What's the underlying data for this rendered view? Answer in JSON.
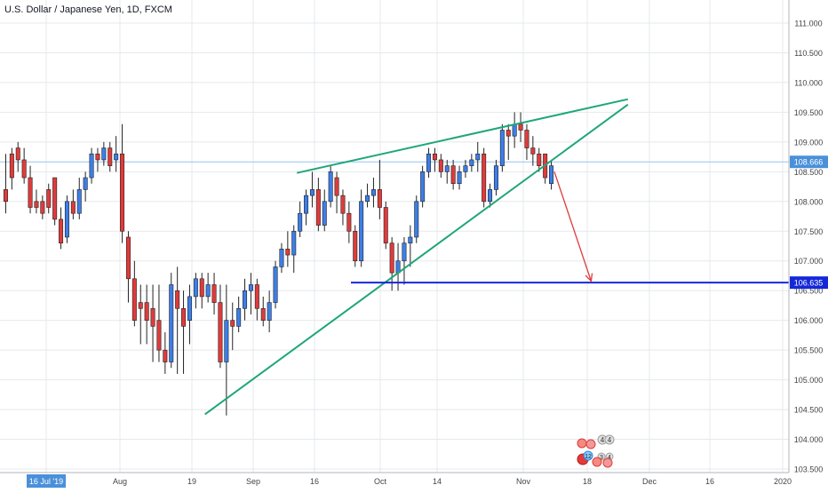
{
  "chart_data": {
    "type": "candlestick",
    "title": "U.S. Dollar / Japanese Yen, 1D, FXCM",
    "price_axis": {
      "ylim": [
        103.4,
        111.4
      ],
      "ticks": [
        "103.500",
        "104.000",
        "104.500",
        "105.000",
        "105.500",
        "106.000",
        "106.500",
        "107.000",
        "107.500",
        "108.000",
        "108.500",
        "109.000",
        "109.500",
        "110.000",
        "110.500",
        "111.000"
      ]
    },
    "time_axis": {
      "labels": [
        "16 Jul '19",
        "Aug",
        "19",
        "Sep",
        "16",
        "Oct",
        "14",
        "Nov",
        "18",
        "Dec",
        "16",
        "2020"
      ],
      "highlighted_label": "16 Jul '19"
    },
    "price_labels": [
      {
        "value": 108.666,
        "text": "108.666",
        "color": "#4a90d9"
      },
      {
        "value": 106.635,
        "text": "106.635",
        "color": "#1528d8"
      }
    ],
    "colors": {
      "up": "#3d7ee8",
      "down": "#e03b3b",
      "trendline": "#1fa67a",
      "support": "#1528d8",
      "arrow": "#e03b3b",
      "grid": "#e6e8ec"
    },
    "candles": [
      [
        108.2,
        108.8,
        108.0,
        107.8
      ],
      [
        108.8,
        108.9,
        108.4,
        108.2
      ],
      [
        108.9,
        109.0,
        108.7,
        108.5
      ],
      [
        108.7,
        108.9,
        108.4,
        108.3
      ],
      [
        108.4,
        108.6,
        107.9,
        107.8
      ],
      [
        108.0,
        108.2,
        107.9,
        107.8
      ],
      [
        108.0,
        108.1,
        107.8,
        107.7
      ],
      [
        108.2,
        108.3,
        107.9,
        107.8
      ],
      [
        108.4,
        108.4,
        107.7,
        107.6
      ],
      [
        107.7,
        107.9,
        107.3,
        107.2
      ],
      [
        107.4,
        108.1,
        108.0,
        107.3
      ],
      [
        108.0,
        108.2,
        107.8,
        107.7
      ],
      [
        107.8,
        108.4,
        108.2,
        107.7
      ],
      [
        108.2,
        108.5,
        108.4,
        108.0
      ],
      [
        108.4,
        108.9,
        108.8,
        108.3
      ],
      [
        108.8,
        108.9,
        108.7,
        108.5
      ],
      [
        108.7,
        109.0,
        108.9,
        108.6
      ],
      [
        108.9,
        109.0,
        108.6,
        108.5
      ],
      [
        108.7,
        109.1,
        108.8,
        108.5
      ],
      [
        108.8,
        109.3,
        107.5,
        107.3
      ],
      [
        107.4,
        107.5,
        106.7,
        106.3
      ],
      [
        106.7,
        107.0,
        106.0,
        105.9
      ],
      [
        106.3,
        106.6,
        106.2,
        105.6
      ],
      [
        106.3,
        106.6,
        106.0,
        105.6
      ],
      [
        106.2,
        106.6,
        105.9,
        105.3
      ],
      [
        106.0,
        106.6,
        105.5,
        105.3
      ],
      [
        105.5,
        105.8,
        105.3,
        105.1
      ],
      [
        105.3,
        106.8,
        106.6,
        105.2
      ],
      [
        106.5,
        106.9,
        106.2,
        105.1
      ],
      [
        106.2,
        106.5,
        105.9,
        105.1
      ],
      [
        106.0,
        106.6,
        106.4,
        105.6
      ],
      [
        106.4,
        106.8,
        106.7,
        106.2
      ],
      [
        106.7,
        106.8,
        106.4,
        106.2
      ],
      [
        106.4,
        106.8,
        106.6,
        106.3
      ],
      [
        106.6,
        106.8,
        106.3,
        106.1
      ],
      [
        106.3,
        106.6,
        105.3,
        105.2
      ],
      [
        105.3,
        106.6,
        106.0,
        104.4
      ],
      [
        106.0,
        106.3,
        105.9,
        105.5
      ],
      [
        105.9,
        106.4,
        106.2,
        105.8
      ],
      [
        106.2,
        106.7,
        106.5,
        106.0
      ],
      [
        106.5,
        106.8,
        106.6,
        106.1
      ],
      [
        106.6,
        106.7,
        106.2,
        106.0
      ],
      [
        106.2,
        106.4,
        106.0,
        105.9
      ],
      [
        106.0,
        106.5,
        106.3,
        105.8
      ],
      [
        106.3,
        107.0,
        106.9,
        106.2
      ],
      [
        106.9,
        107.3,
        107.2,
        106.8
      ],
      [
        107.2,
        107.5,
        107.1,
        106.9
      ],
      [
        107.1,
        107.6,
        107.5,
        106.8
      ],
      [
        107.5,
        108.0,
        107.8,
        107.4
      ],
      [
        107.8,
        108.2,
        108.1,
        107.6
      ],
      [
        108.1,
        108.5,
        108.2,
        107.9
      ],
      [
        108.2,
        108.4,
        107.6,
        107.5
      ],
      [
        107.6,
        108.2,
        108.0,
        107.5
      ],
      [
        108.0,
        108.6,
        108.5,
        107.9
      ],
      [
        108.4,
        108.5,
        108.1,
        107.8
      ],
      [
        108.1,
        108.2,
        107.8,
        107.6
      ],
      [
        107.8,
        108.0,
        107.5,
        107.3
      ],
      [
        107.5,
        107.6,
        107.0,
        106.9
      ],
      [
        107.0,
        108.2,
        108.0,
        106.9
      ],
      [
        108.0,
        108.3,
        108.1,
        107.9
      ],
      [
        108.1,
        108.4,
        108.2,
        107.9
      ],
      [
        108.2,
        108.7,
        107.9,
        107.7
      ],
      [
        107.9,
        108.0,
        107.3,
        107.2
      ],
      [
        107.3,
        107.4,
        106.8,
        106.5
      ],
      [
        106.8,
        107.3,
        107.0,
        106.5
      ],
      [
        107.0,
        107.4,
        107.3,
        106.6
      ],
      [
        107.3,
        107.6,
        107.4,
        106.9
      ],
      [
        107.4,
        108.1,
        108.0,
        107.3
      ],
      [
        108.0,
        108.6,
        108.5,
        107.9
      ],
      [
        108.5,
        108.9,
        108.8,
        108.4
      ],
      [
        108.8,
        108.9,
        108.7,
        108.5
      ],
      [
        108.7,
        108.8,
        108.5,
        108.4
      ],
      [
        108.5,
        108.7,
        108.6,
        108.3
      ],
      [
        108.6,
        108.7,
        108.3,
        108.2
      ],
      [
        108.3,
        108.6,
        108.5,
        108.2
      ],
      [
        108.5,
        108.7,
        108.6,
        108.4
      ],
      [
        108.6,
        108.8,
        108.7,
        108.5
      ],
      [
        108.7,
        109.0,
        108.8,
        108.5
      ],
      [
        108.8,
        108.9,
        108.0,
        107.9
      ],
      [
        108.0,
        108.3,
        108.2,
        107.9
      ],
      [
        108.2,
        108.7,
        108.6,
        108.1
      ],
      [
        108.6,
        109.3,
        109.2,
        108.5
      ],
      [
        109.2,
        109.3,
        109.1,
        108.7
      ],
      [
        109.1,
        109.5,
        109.3,
        108.9
      ],
      [
        109.3,
        109.5,
        109.2,
        109.0
      ],
      [
        109.2,
        109.3,
        108.9,
        108.7
      ],
      [
        108.9,
        109.1,
        108.8,
        108.6
      ],
      [
        108.8,
        108.9,
        108.6,
        108.5
      ],
      [
        108.8,
        108.8,
        108.4,
        108.3
      ],
      [
        108.3,
        108.7,
        108.6,
        108.2
      ]
    ],
    "trendlines": [
      {
        "name": "upper",
        "from": [
          48,
          108.48
        ],
        "to": [
          102,
          109.72
        ]
      },
      {
        "name": "lower",
        "from": [
          33,
          104.42
        ],
        "to": [
          102,
          109.63
        ]
      }
    ],
    "support_level": 106.635,
    "projection_arrow": {
      "from": [
        90,
        108.5
      ],
      "to": [
        96,
        106.66
      ]
    }
  },
  "footer": {
    "badge_a_counts": [
      "4",
      "4"
    ],
    "badge_b_counts": [
      "12",
      "3",
      "4"
    ]
  }
}
